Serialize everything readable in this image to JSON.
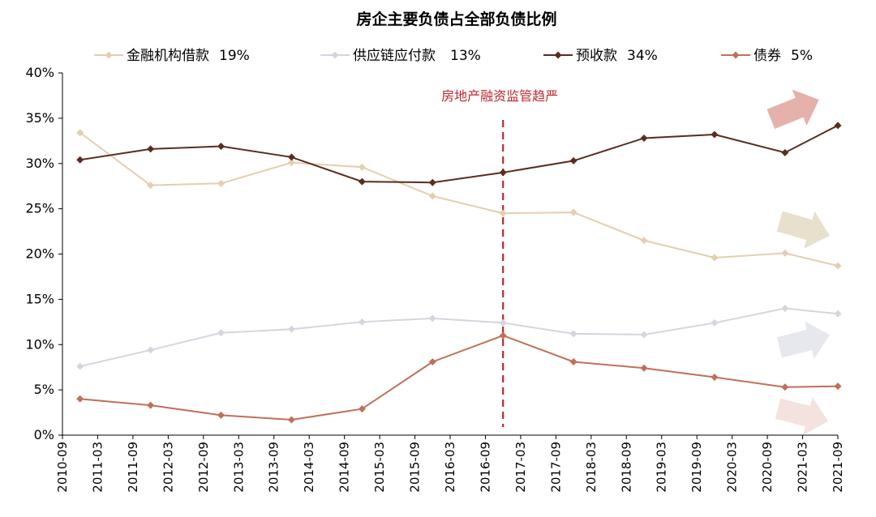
{
  "chart_data": {
    "type": "line",
    "title": "房企主要负债占全部负债比例",
    "xlabel": "",
    "ylabel": "",
    "x_ticks": [
      "2010-09",
      "2011-03",
      "2011-09",
      "2012-03",
      "2012-09",
      "2013-03",
      "2013-09",
      "2014-03",
      "2014-09",
      "2015-03",
      "2015-09",
      "2016-03",
      "2016-09",
      "2017-03",
      "2017-09",
      "2018-03",
      "2018-09",
      "2019-03",
      "2019-09",
      "2020-03",
      "2020-09",
      "2021-03",
      "2021-09"
    ],
    "y_ticks": [
      "0%",
      "5%",
      "10%",
      "15%",
      "20%",
      "25%",
      "30%",
      "35%",
      "40%"
    ],
    "ylim": [
      0,
      40
    ],
    "x": [
      "2010-12",
      "2011-12",
      "2012-12",
      "2013-12",
      "2014-12",
      "2015-12",
      "2016-12",
      "2017-12",
      "2018-12",
      "2019-12",
      "2020-12",
      "2021-09"
    ],
    "series": [
      {
        "name": "金融机构借款",
        "legend_value": "19%",
        "color": "#e3cfb0",
        "values": [
          33.4,
          27.6,
          27.8,
          30.1,
          29.6,
          26.4,
          24.5,
          24.6,
          21.5,
          19.6,
          20.1,
          18.7
        ]
      },
      {
        "name": "供应链应付款",
        "legend_value": "13%",
        "color": "#d4d6df",
        "values": [
          7.6,
          9.4,
          11.3,
          11.7,
          12.5,
          12.9,
          12.4,
          11.2,
          11.1,
          12.4,
          14.0,
          13.4
        ]
      },
      {
        "name": "预收款",
        "legend_value": "34%",
        "color": "#5a2d1e",
        "values": [
          30.4,
          31.6,
          31.9,
          30.7,
          28.0,
          27.9,
          29.0,
          30.3,
          32.8,
          33.2,
          31.2,
          34.2
        ]
      },
      {
        "name": "债券",
        "legend_value": "5%",
        "color": "#c07058",
        "values": [
          4.0,
          3.3,
          2.2,
          1.7,
          2.9,
          8.1,
          11.0,
          8.1,
          7.4,
          6.4,
          5.3,
          5.4
        ]
      }
    ],
    "annotation": {
      "text": "房地产融资监管趋严",
      "x": "2016-12",
      "color": "#c0282d"
    },
    "trend_arrows": [
      {
        "series": "预收款",
        "direction": "up",
        "color": "#e4b2ab"
      },
      {
        "series": "金融机构借款",
        "direction": "down",
        "color": "#e8dfcd"
      },
      {
        "series": "供应链应付款",
        "direction": "up",
        "color": "#e6e8ee"
      },
      {
        "series": "债券",
        "direction": "down",
        "color": "#f3e2de"
      }
    ],
    "legend_position": "top",
    "grid": false
  }
}
